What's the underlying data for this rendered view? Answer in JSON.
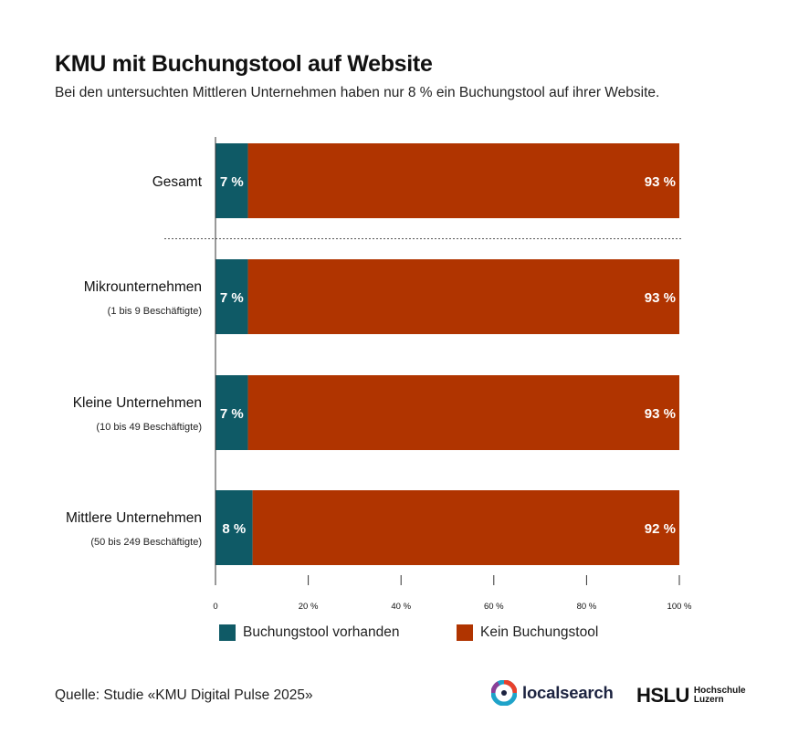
{
  "header": {
    "title": "KMU mit Buchungstool auf Website",
    "subtitle": "Bei den untersuchten Mittleren Unternehmen haben nur 8 % ein Buchungstool auf ihrer Website."
  },
  "chart_data": {
    "type": "bar",
    "orientation": "horizontal",
    "stacked": true,
    "categories": [
      {
        "label": "Gesamt",
        "sublabel": ""
      },
      {
        "label": "Mikrounternehmen",
        "sublabel": "(1 bis 9 Beschäftigte)"
      },
      {
        "label": "Kleine Unternehmen",
        "sublabel": "(10 bis 49 Beschäftigte)"
      },
      {
        "label": "Mittlere Unternehmen",
        "sublabel": "(50 bis 249 Beschäftigte)"
      }
    ],
    "series": [
      {
        "name": "Buchungstool vorhanden",
        "color": "#0f5a66",
        "values": [
          7,
          7,
          7,
          8
        ],
        "labels": [
          "7 %",
          "7 %",
          "7 %",
          "8 %"
        ]
      },
      {
        "name": "Kein Buchungstool",
        "color": "#b03400",
        "values": [
          93,
          93,
          93,
          92
        ],
        "labels": [
          "93 %",
          "93 %",
          "93 %",
          "92 %"
        ]
      }
    ],
    "xlim": [
      0,
      100
    ],
    "xticks": [
      0,
      20,
      40,
      60,
      80,
      100
    ],
    "xtick_labels": [
      "0",
      "20 %",
      "40 %",
      "60 %",
      "80 %",
      "100 %"
    ],
    "separator_after_category": 0,
    "legend_position": "bottom"
  },
  "footer": {
    "source": "Quelle: Studie «KMU Digital Pulse 2025»",
    "logo_localsearch": "localsearch",
    "logo_hslu": "HSLU",
    "logo_hslu_line1": "Hochschule",
    "logo_hslu_line2": "Luzern"
  }
}
